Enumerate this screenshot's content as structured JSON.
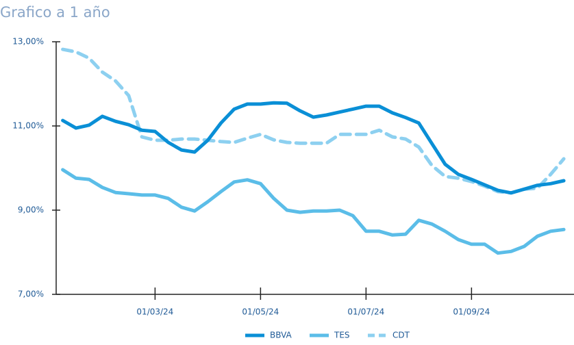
{
  "chart_data": {
    "type": "line",
    "title": "Grafico a 1 año",
    "categories": [
      null,
      null,
      null,
      null,
      null,
      null,
      null,
      "01/03/24",
      null,
      null,
      null,
      null,
      null,
      null,
      null,
      "01/05/24",
      null,
      null,
      null,
      null,
      null,
      null,
      null,
      "01/07/24",
      null,
      null,
      null,
      null,
      null,
      null,
      null,
      "01/09/24",
      null,
      null,
      null,
      null,
      null,
      null,
      null
    ],
    "series": [
      {
        "name": "BBVA",
        "color": "#0a8fd6",
        "dashed": false,
        "values": [
          11.13,
          10.95,
          11.02,
          11.23,
          11.11,
          11.03,
          10.9,
          10.87,
          10.61,
          10.43,
          10.38,
          10.66,
          11.07,
          11.4,
          11.52,
          11.52,
          11.55,
          11.54,
          11.36,
          11.21,
          11.26,
          11.33,
          11.4,
          11.47,
          11.47,
          11.31,
          11.2,
          11.07,
          10.58,
          10.09,
          9.85,
          9.73,
          9.6,
          9.47,
          9.41,
          9.5,
          9.59,
          9.63,
          9.7
        ]
      },
      {
        "name": "TES",
        "color": "#5bbde8",
        "dashed": false,
        "values": [
          9.96,
          9.76,
          9.73,
          9.54,
          9.42,
          9.39,
          9.36,
          9.36,
          9.28,
          9.07,
          8.98,
          9.2,
          9.44,
          9.67,
          9.72,
          9.63,
          9.28,
          9.0,
          8.95,
          8.98,
          8.98,
          9.0,
          8.87,
          8.5,
          8.5,
          8.41,
          8.43,
          8.76,
          8.67,
          8.5,
          8.3,
          8.19,
          8.19,
          7.98,
          8.02,
          8.14,
          8.38,
          8.5,
          8.54
        ]
      },
      {
        "name": "CDT",
        "color": "#8dd0f0",
        "dashed": true,
        "values": [
          12.82,
          12.76,
          12.61,
          12.28,
          12.07,
          11.72,
          10.74,
          10.66,
          10.66,
          10.69,
          10.69,
          10.66,
          10.63,
          10.61,
          10.71,
          10.8,
          10.67,
          10.61,
          10.59,
          10.59,
          10.59,
          10.8,
          10.8,
          10.8,
          10.9,
          10.74,
          10.69,
          10.5,
          10.06,
          9.8,
          9.76,
          9.68,
          9.57,
          9.44,
          9.41,
          9.5,
          9.52,
          9.85,
          10.22
        ]
      }
    ],
    "ylim": [
      7,
      13
    ],
    "yticks": [
      {
        "value": 7,
        "label": "7,00%"
      },
      {
        "value": 9,
        "label": "9,00%"
      },
      {
        "value": 11,
        "label": "11,00%"
      },
      {
        "value": 13,
        "label": "13,00%"
      }
    ],
    "legend": "bottom"
  }
}
